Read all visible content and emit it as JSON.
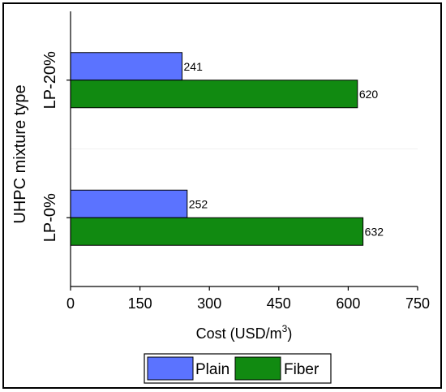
{
  "chart_data": {
    "type": "bar",
    "orientation": "horizontal",
    "categories": [
      "LP-0%",
      "LP-20%"
    ],
    "series": [
      {
        "name": "Plain",
        "values": [
          252,
          241
        ],
        "color": "#5b73ff"
      },
      {
        "name": "Fiber",
        "values": [
          632,
          620
        ],
        "color": "#118a11"
      }
    ],
    "data_labels": {
      "Plain": [
        "252",
        "241"
      ],
      "Fiber": [
        "632",
        "620"
      ]
    },
    "xlabel": "Cost (USD/m",
    "xlabel_sup": "3",
    "xlabel_close": ")",
    "ylabel": "UHPC mixture type",
    "xlim": [
      0,
      750
    ],
    "xticks": [
      0,
      150,
      300,
      450,
      600,
      750
    ],
    "xtick_labels": [
      "0",
      "150",
      "300",
      "450",
      "600",
      "750"
    ],
    "legend": {
      "placement": "bottom",
      "entries": [
        "Plain",
        "Fiber"
      ]
    }
  }
}
